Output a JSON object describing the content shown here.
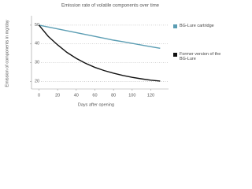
{
  "chart_data": {
    "type": "line",
    "title": "Emission rate of volatile components over time",
    "x_label": "Days after opening",
    "y_label": "Emission of components in mg/day",
    "x": [
      0,
      10,
      20,
      30,
      40,
      50,
      60,
      70,
      80,
      90,
      100,
      110,
      120,
      130
    ],
    "series": [
      {
        "name": "BG-Lure cartridge",
        "color": "#5b9db3",
        "values": [
          50,
          49,
          48,
          47,
          46,
          45,
          44,
          43,
          42,
          41.2,
          40.3,
          39.4,
          38.5,
          37.7
        ]
      },
      {
        "name": "Former version of the BG-Lure",
        "color": "#111111",
        "values": [
          50,
          44,
          39.5,
          35.5,
          32.3,
          29.7,
          27.5,
          25.8,
          24.4,
          23.2,
          22.2,
          21.4,
          20.7,
          20.2
        ]
      }
    ],
    "xlim": [
      -8,
      139
    ],
    "xticks": [
      0,
      20,
      40,
      60,
      80,
      100,
      120
    ],
    "ylim": [
      16,
      55
    ],
    "yticks": [
      20,
      30,
      40,
      50
    ],
    "grid": true,
    "legend": "right"
  }
}
